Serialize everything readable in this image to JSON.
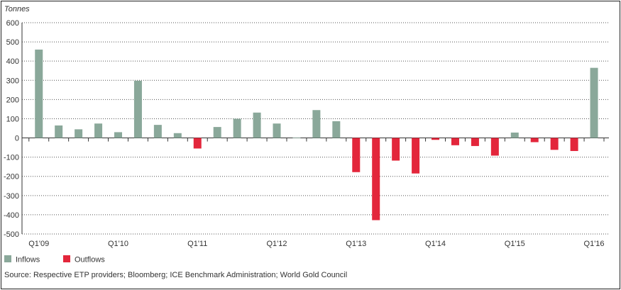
{
  "chart_data": {
    "type": "bar",
    "y_unit_label": "Tonnes",
    "ylim": [
      -500,
      600
    ],
    "yticks": [
      600,
      500,
      400,
      300,
      200,
      100,
      0,
      -100,
      -200,
      -300,
      -400,
      -500
    ],
    "ytick_labels": [
      "600",
      "500",
      "400",
      "300",
      "200",
      "100",
      "0",
      "-100",
      "-200",
      "-300",
      "-400",
      "-500"
    ],
    "grid": true,
    "categories": [
      "Q1'09",
      "Q2'09",
      "Q3'09",
      "Q4'09",
      "Q1'10",
      "Q2'10",
      "Q3'10",
      "Q4'10",
      "Q1'11",
      "Q2'11",
      "Q3'11",
      "Q4'11",
      "Q1'12",
      "Q2'12",
      "Q3'12",
      "Q4'12",
      "Q1'13",
      "Q2'13",
      "Q3'13",
      "Q4'13",
      "Q1'14",
      "Q2'14",
      "Q3'14",
      "Q4'14",
      "Q1'15",
      "Q2'15",
      "Q3'15",
      "Q4'15",
      "Q1'16"
    ],
    "x_tick_labels": [
      {
        "index": 0,
        "label": "Q1'09"
      },
      {
        "index": 4,
        "label": "Q1'10"
      },
      {
        "index": 8,
        "label": "Q1'11"
      },
      {
        "index": 12,
        "label": "Q1'12"
      },
      {
        "index": 16,
        "label": "Q1'13"
      },
      {
        "index": 20,
        "label": "Q1'14"
      },
      {
        "index": 24,
        "label": "Q1'15"
      },
      {
        "index": 28,
        "label": "Q1'16"
      }
    ],
    "values": [
      460,
      65,
      45,
      75,
      30,
      298,
      68,
      25,
      -55,
      57,
      100,
      132,
      75,
      2,
      145,
      87,
      -178,
      -428,
      -118,
      -185,
      -10,
      -38,
      -42,
      -92,
      28,
      -22,
      -62,
      -68,
      365
    ],
    "series": [
      {
        "name": "Inflows",
        "color": "#8aa89a"
      },
      {
        "name": "Outflows",
        "color": "#e3263b"
      }
    ],
    "legend_placement": "bottom-left",
    "source": "Source: Respective ETP providers; Bloomberg; ICE Benchmark Administration; World Gold Council"
  }
}
